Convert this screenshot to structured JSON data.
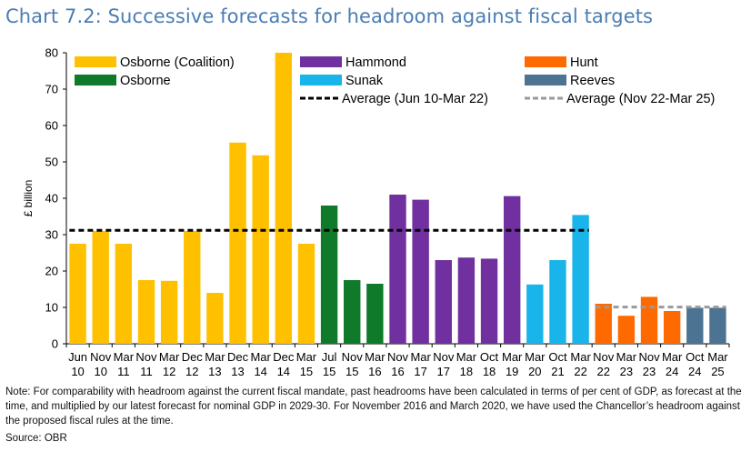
{
  "title": "Chart 7.2: Successive forecasts for headroom against fiscal targets",
  "note": "Note: For comparability with headroom against the current fiscal mandate, past headrooms have been calculated in terms of per cent of GDP, as forecast at the time, and multiplied by our latest forecast for nominal GDP in 2029-30. For November 2016 and March 2020, we have used the Chancellor’s headroom against the proposed fiscal rules at the time.",
  "source": "Source: OBR",
  "colors": {
    "osborne_coalition": "#ffc000",
    "osborne": "#0e7a2a",
    "hammond": "#7030a0",
    "sunak": "#18b4ea",
    "hunt": "#ff6a00",
    "reeves": "#4d7393",
    "avg1": "#000000",
    "avg2": "#9a9a9a"
  },
  "chart_data": {
    "type": "bar",
    "title": "Chart 7.2: Successive forecasts for headroom against fiscal targets",
    "ylabel": "£ billion",
    "xlabel": "",
    "ylim": [
      0,
      80
    ],
    "yticks": [
      0,
      10,
      20,
      30,
      40,
      50,
      60,
      70,
      80
    ],
    "categories": [
      {
        "top": "Jun",
        "bottom": "10"
      },
      {
        "top": "Nov",
        "bottom": "10"
      },
      {
        "top": "Mar",
        "bottom": "11"
      },
      {
        "top": "Nov",
        "bottom": "11"
      },
      {
        "top": "Mar",
        "bottom": "12"
      },
      {
        "top": "Dec",
        "bottom": "12"
      },
      {
        "top": "Mar",
        "bottom": "13"
      },
      {
        "top": "Dec",
        "bottom": "13"
      },
      {
        "top": "Mar",
        "bottom": "14"
      },
      {
        "top": "Dec",
        "bottom": "14"
      },
      {
        "top": "Mar",
        "bottom": "15"
      },
      {
        "top": "Jul",
        "bottom": "15"
      },
      {
        "top": "Nov",
        "bottom": "15"
      },
      {
        "top": "Mar",
        "bottom": "16"
      },
      {
        "top": "Nov",
        "bottom": "16"
      },
      {
        "top": "Mar",
        "bottom": "17"
      },
      {
        "top": "Nov",
        "bottom": "17"
      },
      {
        "top": "Mar",
        "bottom": "18"
      },
      {
        "top": "Oct",
        "bottom": "18"
      },
      {
        "top": "Mar",
        "bottom": "19"
      },
      {
        "top": "Mar",
        "bottom": "20"
      },
      {
        "top": "Oct",
        "bottom": "21"
      },
      {
        "top": "Mar",
        "bottom": "22"
      },
      {
        "top": "Nov",
        "bottom": "22"
      },
      {
        "top": "Mar",
        "bottom": "23"
      },
      {
        "top": "Nov",
        "bottom": "23"
      },
      {
        "top": "Mar",
        "bottom": "24"
      },
      {
        "top": "Oct",
        "bottom": "24"
      },
      {
        "top": "Mar",
        "bottom": "25"
      }
    ],
    "values": [
      27.5,
      31,
      27.5,
      17.5,
      17.3,
      31,
      14,
      55.3,
      51.8,
      80,
      27.5,
      38,
      17.5,
      16.5,
      41,
      39.6,
      23,
      23.7,
      23.4,
      40.6,
      16.3,
      23,
      35.4,
      11,
      7.7,
      12.9,
      9,
      9.9,
      9.9
    ],
    "series": [
      {
        "name": "Osborne (Coalition)",
        "color_key": "osborne_coalition",
        "indices": [
          0,
          1,
          2,
          3,
          4,
          5,
          6,
          7,
          8,
          9,
          10
        ]
      },
      {
        "name": "Osborne",
        "color_key": "osborne",
        "indices": [
          11,
          12,
          13
        ]
      },
      {
        "name": "Hammond",
        "color_key": "hammond",
        "indices": [
          14,
          15,
          16,
          17,
          18,
          19
        ]
      },
      {
        "name": "Sunak",
        "color_key": "sunak",
        "indices": [
          20,
          21,
          22
        ]
      },
      {
        "name": "Hunt",
        "color_key": "hunt",
        "indices": [
          23,
          24,
          25,
          26
        ]
      },
      {
        "name": "Reeves",
        "color_key": "reeves",
        "indices": [
          27,
          28
        ]
      }
    ],
    "averages": [
      {
        "name": "Average (Jun 10-Mar 22)",
        "value": 31.2,
        "from_index": 0,
        "to_index": 22,
        "color_key": "avg1"
      },
      {
        "name": "Average (Nov 22-Mar 25)",
        "value": 10.1,
        "from_index": 23,
        "to_index": 28,
        "color_key": "avg2"
      }
    ],
    "legend_position": "top"
  }
}
